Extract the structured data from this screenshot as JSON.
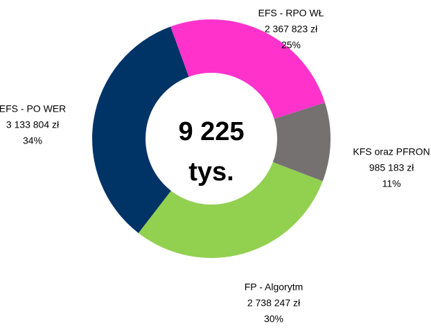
{
  "chart_data": {
    "type": "donut",
    "center_label": [
      "9 225",
      "tys."
    ],
    "categories": [
      "EFS - RPO WŁ",
      "KFS oraz PFRON",
      "FP - Algorytm",
      "EFS - PO WER"
    ],
    "values": [
      2367823,
      985183,
      2738247,
      3133804
    ],
    "value_labels": [
      "2 367 823 zł",
      "985 183 zł",
      "2 738 247 zł",
      "3 133 804 zł"
    ],
    "percentages": [
      25,
      11,
      30,
      34
    ],
    "percentage_labels": [
      "25%",
      "11%",
      "30%",
      "34%"
    ],
    "colors": [
      "#ff33cc",
      "#767171",
      "#92d050",
      "#003366"
    ]
  }
}
